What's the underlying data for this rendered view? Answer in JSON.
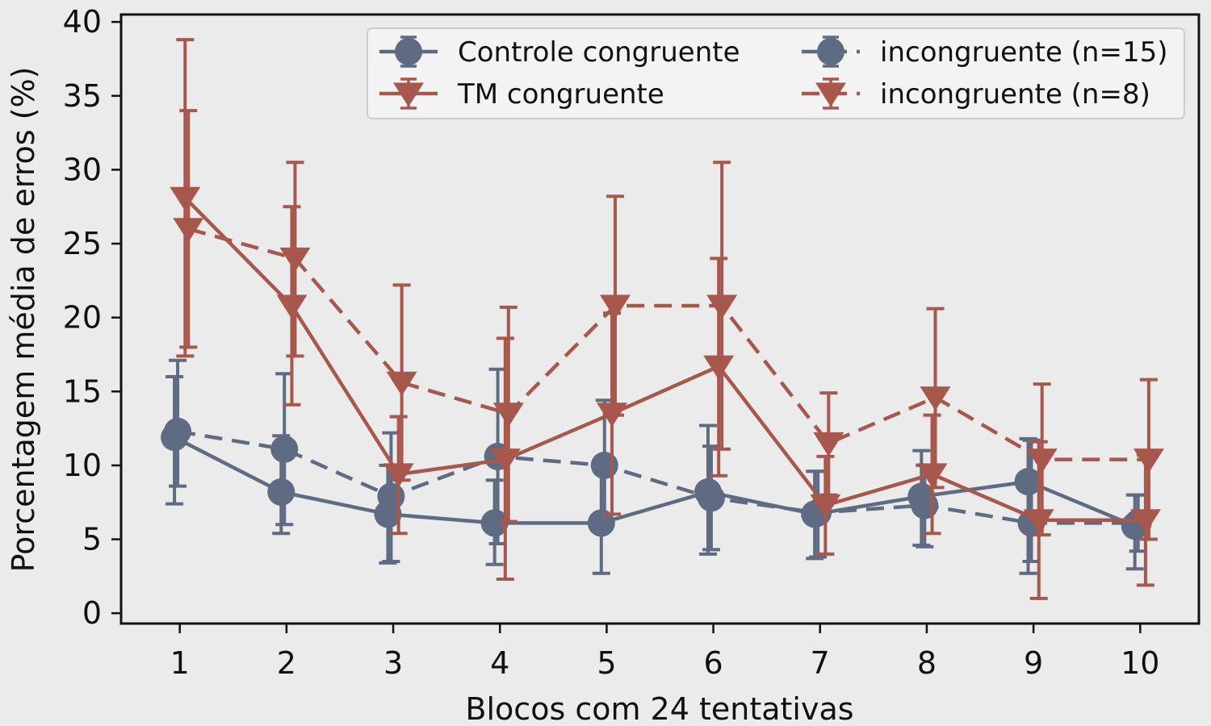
{
  "chart_data": {
    "type": "line",
    "title": "",
    "xlabel": "Blocos com 24 tentativas",
    "ylabel": "Porcentagem média de erros (%)",
    "xlim": [
      0.45,
      10.55
    ],
    "ylim": [
      -0.7,
      40.5
    ],
    "x_ticks": [
      1,
      2,
      3,
      4,
      5,
      6,
      7,
      8,
      9,
      10
    ],
    "x_tick_labels": [
      "1",
      "2",
      "3",
      "4",
      "5",
      "6",
      "7",
      "8",
      "9",
      "10"
    ],
    "y_ticks": [
      0,
      5,
      10,
      15,
      20,
      25,
      30,
      35,
      40
    ],
    "y_tick_labels": [
      "0",
      "5",
      "10",
      "15",
      "20",
      "25",
      "30",
      "35",
      "40"
    ],
    "grid": false,
    "legend_position": "top-right",
    "colors": {
      "controle": "#5e6b82",
      "tm": "#a8574c",
      "background": "#ebebeb",
      "legend_bg": "#f3f3f3"
    },
    "x": [
      1,
      2,
      3,
      4,
      5,
      6,
      7,
      8,
      9,
      10
    ],
    "series": [
      {
        "name": "Controle congruente",
        "group": "controle",
        "line_style": "solid",
        "marker": "circle",
        "offset": -0.05,
        "values": [
          11.9,
          8.2,
          6.7,
          6.1,
          6.1,
          8.2,
          6.7,
          7.9,
          8.9,
          5.9
        ],
        "err_low": [
          7.4,
          5.4,
          3.4,
          3.3,
          2.7,
          4.0,
          3.7,
          4.6,
          2.7,
          3.0
        ],
        "err_high": [
          16.0,
          12.0,
          10.0,
          9.0,
          9.7,
          12.7,
          9.6,
          11.0,
          11.8,
          8.0
        ]
      },
      {
        "name": "incongruente (n=15)",
        "group": "controle",
        "line_style": "dashed",
        "marker": "circle",
        "offset": -0.02,
        "values": [
          12.3,
          11.1,
          7.9,
          10.6,
          10.0,
          7.8,
          6.8,
          7.3,
          6.1,
          6.1
        ],
        "err_low": [
          8.6,
          6.0,
          3.5,
          4.7,
          6.0,
          4.3,
          3.8,
          4.5,
          3.5,
          4.2
        ],
        "err_high": [
          17.1,
          16.2,
          12.2,
          16.5,
          14.4,
          11.3,
          9.6,
          10.0,
          11.7,
          8.0
        ]
      },
      {
        "name": "TM congruente",
        "group": "tm",
        "line_style": "solid",
        "marker": "triangle-down",
        "offset": 0.05,
        "values": [
          28.1,
          20.8,
          9.4,
          10.4,
          13.5,
          16.7,
          7.3,
          9.4,
          6.3,
          6.3
        ],
        "err_low": [
          17.4,
          14.1,
          5.4,
          2.3,
          6.7,
          9.3,
          4.0,
          5.4,
          1.0,
          1.9
        ],
        "err_high": [
          38.8,
          27.5,
          13.3,
          18.6,
          20.3,
          24.0,
          10.6,
          13.4,
          11.6,
          10.7
        ]
      },
      {
        "name": "incongruente (n=8)",
        "group": "tm",
        "line_style": "dashed",
        "marker": "triangle-down",
        "offset": 0.08,
        "values": [
          26.0,
          24.0,
          15.6,
          13.5,
          20.8,
          20.8,
          11.5,
          14.6,
          10.4,
          10.4
        ],
        "err_low": [
          18.0,
          17.4,
          9.0,
          6.2,
          13.4,
          11.1,
          8.0,
          8.5,
          5.3,
          5.0
        ],
        "err_high": [
          34.0,
          30.5,
          22.2,
          20.7,
          28.2,
          30.5,
          14.9,
          20.6,
          15.5,
          15.8
        ]
      }
    ]
  }
}
